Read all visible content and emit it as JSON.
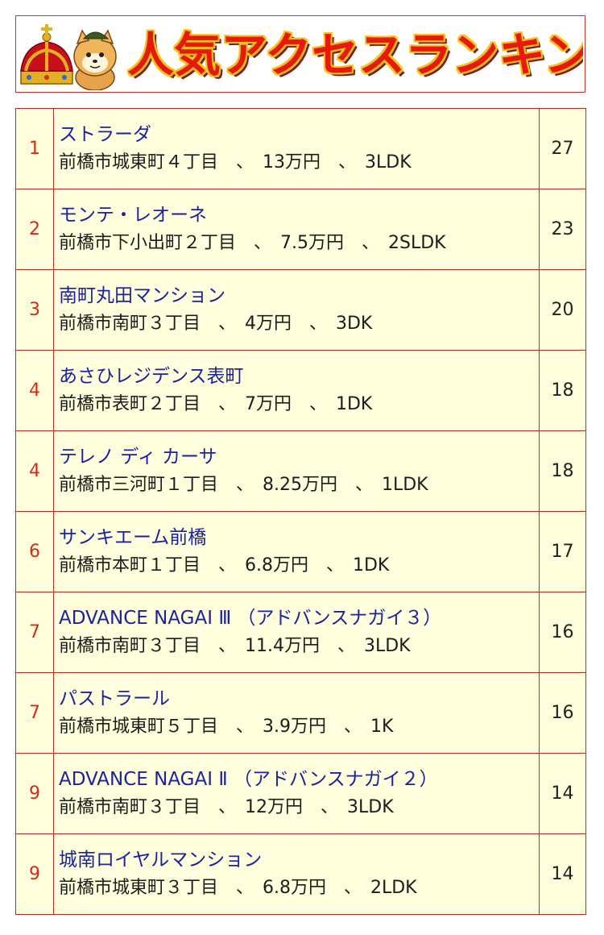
{
  "banner": {
    "title": "人気アクセスランキング",
    "mascot_icon": "crown-mascot-icon"
  },
  "colors": {
    "accent_red": "#d42a1a",
    "link_blue": "#1a22a0",
    "row_bg": "#ffffdd",
    "border": "#b03027"
  },
  "rows": [
    {
      "rank": "1",
      "name": "ストラーダ",
      "detail": "前橋市城東町４丁目　、　13万円　、　3LDK",
      "count": "27"
    },
    {
      "rank": "2",
      "name": "モンテ・レオーネ",
      "detail": "前橋市下小出町２丁目　、　7.5万円　、　2SLDK",
      "count": "23"
    },
    {
      "rank": "3",
      "name": "南町丸田マンション",
      "detail": "前橋市南町３丁目　、　4万円　、　3DK",
      "count": "20"
    },
    {
      "rank": "4",
      "name": "あさひレジデンス表町",
      "detail": "前橋市表町２丁目　、　7万円　、　1DK",
      "count": "18"
    },
    {
      "rank": "4",
      "name": "テレノ ディ カーサ",
      "detail": "前橋市三河町１丁目　、　8.25万円　、　1LDK",
      "count": "18"
    },
    {
      "rank": "6",
      "name": "サンキエーム前橋",
      "detail": "前橋市本町１丁目　、　6.8万円　、　1DK",
      "count": "17"
    },
    {
      "rank": "7",
      "name": "ADVANCE NAGAI Ⅲ （アドバンスナガイ３）",
      "detail": "前橋市南町３丁目　、　11.4万円　、　3LDK",
      "count": "16"
    },
    {
      "rank": "7",
      "name": "パストラール",
      "detail": "前橋市城東町５丁目　、　3.9万円　、　1K",
      "count": "16"
    },
    {
      "rank": "9",
      "name": "ADVANCE NAGAI Ⅱ （アドバンスナガイ２）",
      "detail": "前橋市南町３丁目　、　12万円　、　3LDK",
      "count": "14"
    },
    {
      "rank": "9",
      "name": "城南ロイヤルマンション",
      "detail": "前橋市城東町３丁目　、　6.8万円　、　2LDK",
      "count": "14"
    }
  ]
}
